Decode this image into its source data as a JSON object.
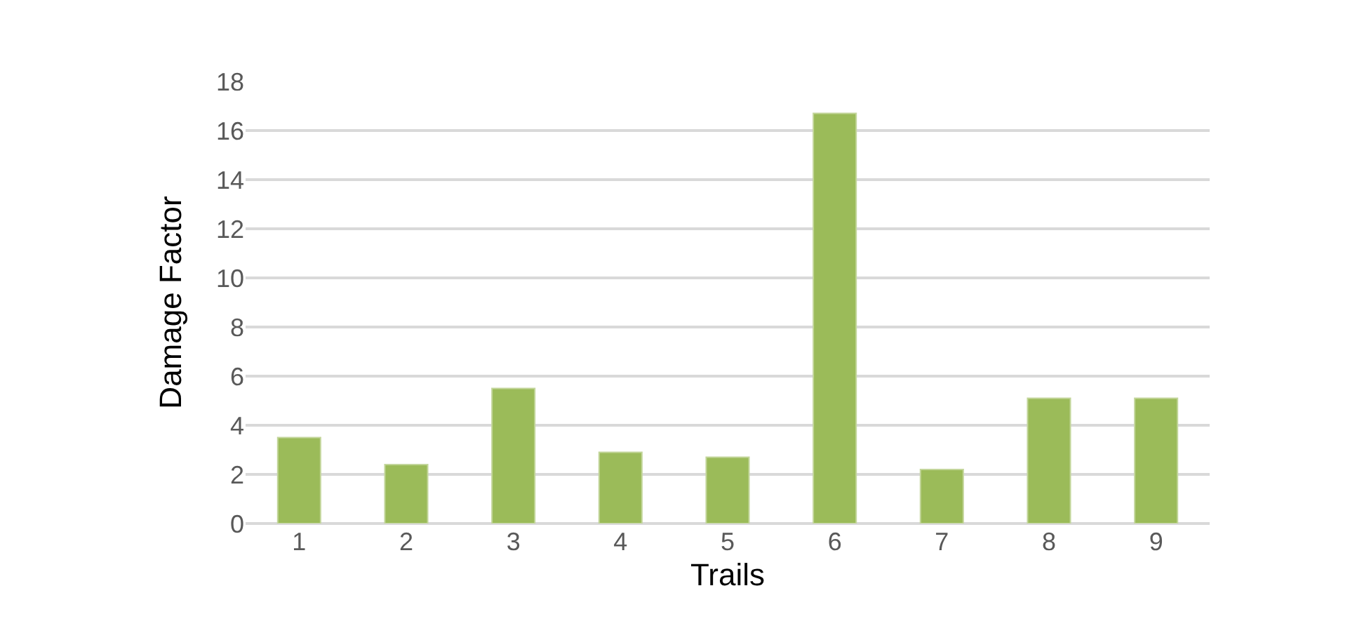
{
  "chart_data": {
    "type": "bar",
    "xlabel": "Trails",
    "ylabel": "Damage Factor",
    "categories": [
      "1",
      "2",
      "3",
      "4",
      "5",
      "6",
      "7",
      "8",
      "9"
    ],
    "values": [
      3.5,
      2.4,
      5.5,
      2.9,
      2.7,
      16.7,
      2.2,
      5.1,
      5.1
    ],
    "color": "#9bbb59",
    "ylim": [
      0,
      18
    ],
    "yticks": [
      0,
      2,
      4,
      6,
      8,
      10,
      12,
      14,
      16,
      18
    ],
    "grid": "y"
  }
}
